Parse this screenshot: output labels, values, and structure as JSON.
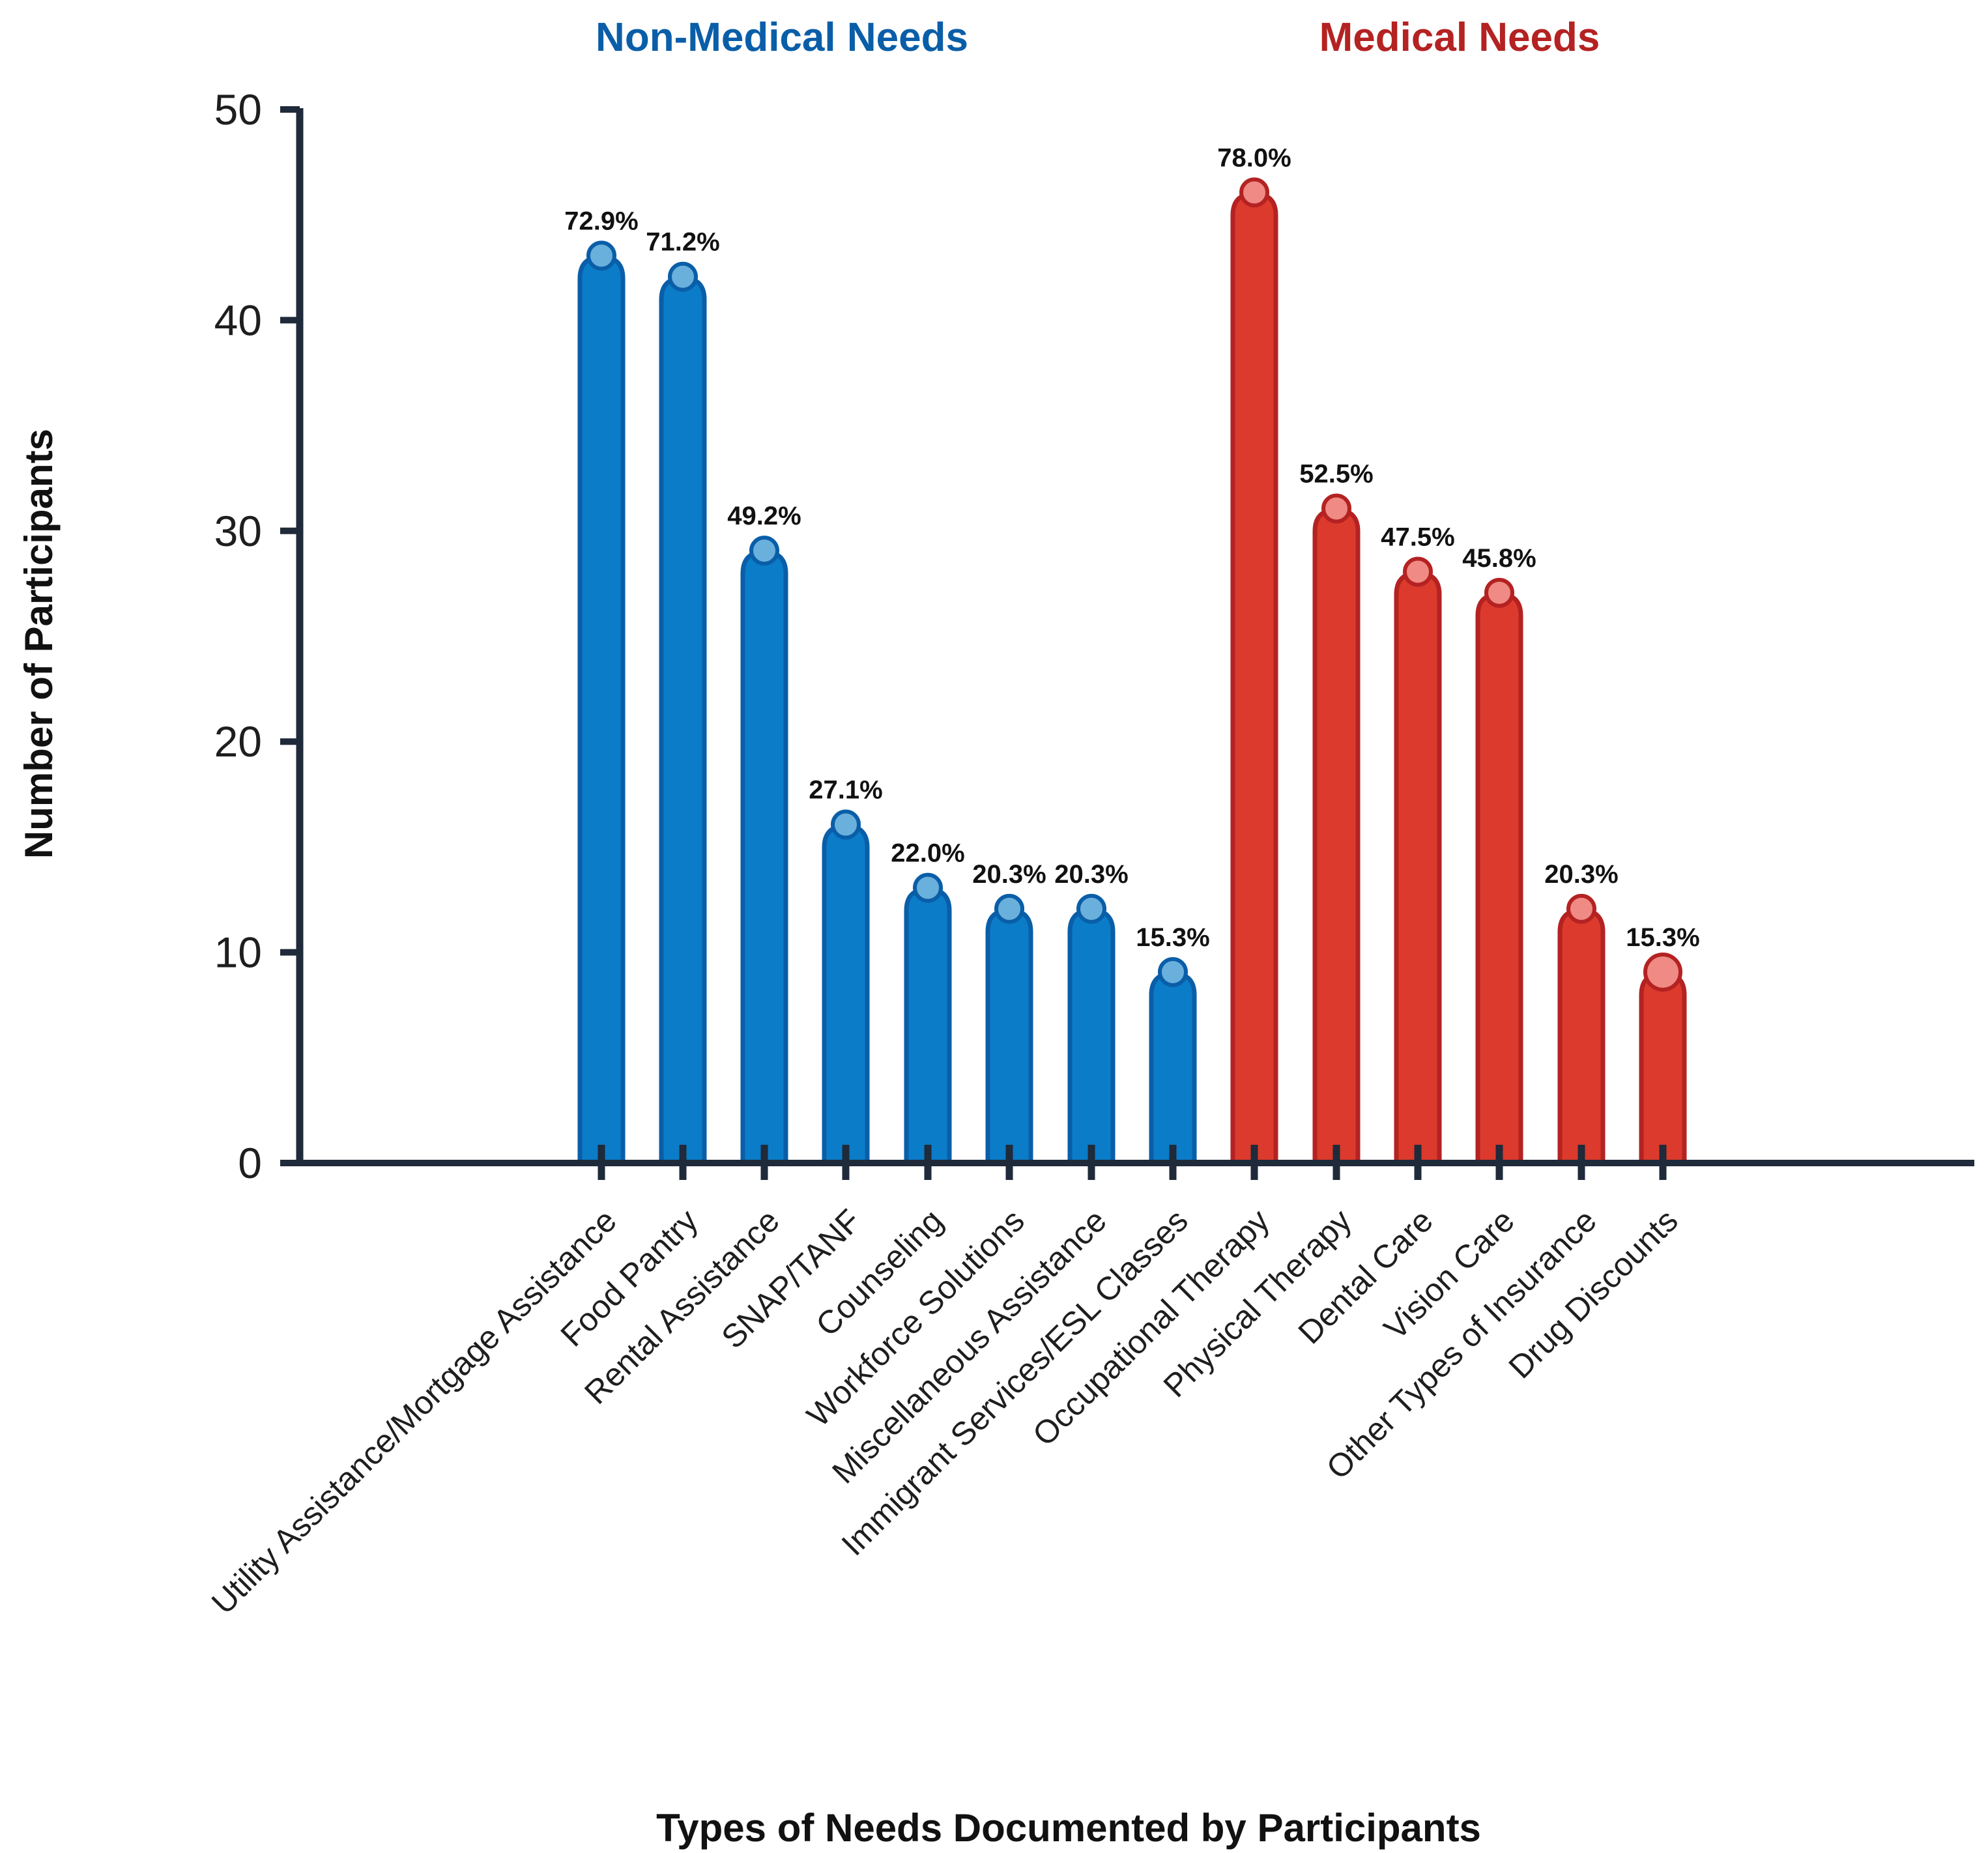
{
  "chart_data": {
    "type": "bar",
    "xlabel": "Types of Needs Documented by Participants",
    "ylabel": "Number of Participants",
    "ylim": [
      0,
      50
    ],
    "yticks": [
      0,
      10,
      20,
      30,
      40,
      50
    ],
    "groups": [
      {
        "name": "Non-Medical Needs",
        "color": "#0a5ea8",
        "fill": "#0b7cc8",
        "dot": "#6ab0dc",
        "start": 0,
        "count": 8
      },
      {
        "name": "Medical Needs",
        "color": "#b42222",
        "fill": "#dc3a2c",
        "dot": "#ef8a84",
        "start": 8,
        "count": 6
      }
    ],
    "categories": [
      "Utility Assistance/Mortgage Assistance",
      "Food Pantry",
      "Rental Assistance",
      "SNAP/TANF",
      "Counseling",
      "Workforce Solutions",
      "Miscellaneous Assistance",
      "Immigrant Services/ESL Classes",
      "Occupational Therapy",
      "Physical Therapy",
      "Dental Care",
      "Vision Care",
      "Other Types of Insurance",
      "Drug Discounts"
    ],
    "values": [
      43,
      42,
      29,
      16,
      13,
      12,
      12,
      9,
      46,
      31,
      28,
      27,
      12,
      9
    ],
    "data_labels": [
      "72.9%",
      "71.2%",
      "49.2%",
      "27.1%",
      "22.0%",
      "20.3%",
      "20.3%",
      "15.3%",
      "78.0%",
      "52.5%",
      "47.5%",
      "45.8%",
      "20.3%",
      "15.3%"
    ]
  }
}
